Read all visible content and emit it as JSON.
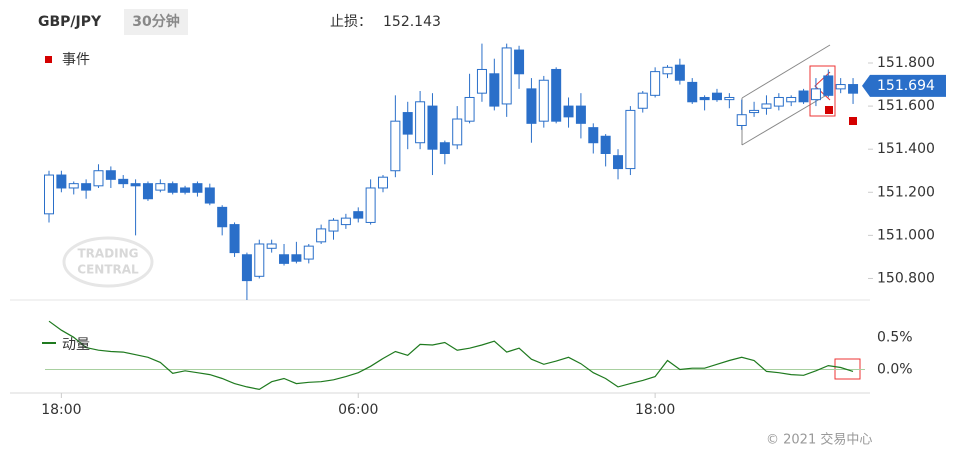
{
  "header": {
    "symbol": "GBP/JPY",
    "timeframe": "30分钟",
    "stop_loss_label": "止损：",
    "stop_loss": 152.143
  },
  "chart_data": [
    {
      "type": "candlestick",
      "events_label": "事件",
      "events_color": "#d40000",
      "categories": [
        null,
        "18:00",
        null,
        null,
        null,
        null,
        null,
        null,
        null,
        null,
        null,
        null,
        null,
        null,
        null,
        null,
        null,
        null,
        null,
        null,
        null,
        null,
        null,
        null,
        null,
        "06:00",
        null,
        null,
        null,
        null,
        null,
        null,
        null,
        null,
        null,
        null,
        null,
        null,
        null,
        null,
        null,
        null,
        null,
        null,
        null,
        null,
        null,
        null,
        null,
        "18:00",
        null,
        null,
        null,
        null,
        null,
        null,
        null,
        null,
        null,
        null,
        null,
        null,
        null,
        null,
        null,
        null
      ],
      "open": [
        151.1,
        151.28,
        151.22,
        151.24,
        151.23,
        151.3,
        151.26,
        151.24,
        151.24,
        151.21,
        151.24,
        151.22,
        151.24,
        151.22,
        151.13,
        151.05,
        150.91,
        150.81,
        150.94,
        150.91,
        150.91,
        150.89,
        150.97,
        151.02,
        151.05,
        151.11,
        151.06,
        151.22,
        151.3,
        151.57,
        151.43,
        151.6,
        151.43,
        151.42,
        151.53,
        151.66,
        151.75,
        151.61,
        151.86,
        151.68,
        151.53,
        151.77,
        151.6,
        151.6,
        151.5,
        151.46,
        151.37,
        151.31,
        151.59,
        151.65,
        151.75,
        151.79,
        151.71,
        151.64,
        151.66,
        151.63,
        151.51,
        151.57,
        151.59,
        151.6,
        151.62,
        151.67,
        151.63,
        151.74,
        151.68,
        151.7
      ],
      "high": [
        151.3,
        151.3,
        151.25,
        151.26,
        151.33,
        151.32,
        151.28,
        151.26,
        151.25,
        151.26,
        151.25,
        151.23,
        151.25,
        151.24,
        151.14,
        151.06,
        150.92,
        150.98,
        150.98,
        150.96,
        150.97,
        150.96,
        151.05,
        151.08,
        151.1,
        151.13,
        151.26,
        151.28,
        151.65,
        151.62,
        151.67,
        151.66,
        151.44,
        151.6,
        151.75,
        151.89,
        151.82,
        151.89,
        151.88,
        151.73,
        151.74,
        151.78,
        151.64,
        151.66,
        151.52,
        151.47,
        151.4,
        151.6,
        151.67,
        151.78,
        151.79,
        151.82,
        151.73,
        151.65,
        151.68,
        151.66,
        151.63,
        151.62,
        151.65,
        151.66,
        151.65,
        151.68,
        151.73,
        151.77,
        151.73,
        151.73
      ],
      "low": [
        151.06,
        151.2,
        151.19,
        151.17,
        151.22,
        151.22,
        151.22,
        151.0,
        151.16,
        151.2,
        151.19,
        151.19,
        151.18,
        151.14,
        151.0,
        150.9,
        150.7,
        150.8,
        150.92,
        150.86,
        150.87,
        150.87,
        150.96,
        150.98,
        151.03,
        151.06,
        151.05,
        151.2,
        151.27,
        151.4,
        151.4,
        151.28,
        151.33,
        151.4,
        151.52,
        151.62,
        151.58,
        151.55,
        151.68,
        151.43,
        151.5,
        151.52,
        151.5,
        151.45,
        151.38,
        151.32,
        151.26,
        151.28,
        151.57,
        151.64,
        151.73,
        151.7,
        151.61,
        151.58,
        151.62,
        151.59,
        151.49,
        151.55,
        151.56,
        151.58,
        151.6,
        151.61,
        151.6,
        151.64,
        151.66,
        151.61
      ],
      "close": [
        151.28,
        151.22,
        151.24,
        151.21,
        151.3,
        151.26,
        151.24,
        151.23,
        151.17,
        151.24,
        151.2,
        151.2,
        151.2,
        151.15,
        151.04,
        150.92,
        150.79,
        150.96,
        150.96,
        150.87,
        150.88,
        150.95,
        151.03,
        151.07,
        151.08,
        151.08,
        151.22,
        151.27,
        151.53,
        151.47,
        151.62,
        151.4,
        151.38,
        151.54,
        151.64,
        151.77,
        151.6,
        151.87,
        151.75,
        151.52,
        151.72,
        151.53,
        151.55,
        151.52,
        151.43,
        151.38,
        151.31,
        151.58,
        151.66,
        151.76,
        151.78,
        151.72,
        151.62,
        151.63,
        151.63,
        151.64,
        151.56,
        151.58,
        151.61,
        151.64,
        151.64,
        151.62,
        151.68,
        151.65,
        151.7,
        151.66
      ],
      "up_color": "#ffffff",
      "down_color": "#2a6fc9",
      "outline_color": "#2a6fc9",
      "ylim": [
        150.7,
        151.93
      ],
      "yticks": [
        {
          "value": 151.8,
          "label": "151.800"
        },
        {
          "value": 151.6,
          "label": "151.600"
        },
        {
          "value": 151.4,
          "label": "151.400"
        },
        {
          "value": 151.2,
          "label": "151.200"
        },
        {
          "value": 151.0,
          "label": "151.000"
        },
        {
          "value": 150.8,
          "label": "150.800"
        }
      ],
      "last_price": 151.694,
      "last_price_color": "#2a6fc9",
      "watermark": [
        "TRADING",
        "CENTRAL"
      ]
    },
    {
      "type": "line",
      "series": [
        {
          "name": "动量",
          "color": "#1f7a1f",
          "values": [
            0.75,
            0.61,
            0.5,
            0.34,
            0.3,
            0.28,
            0.27,
            0.23,
            0.19,
            0.11,
            -0.06,
            -0.02,
            -0.05,
            -0.08,
            -0.14,
            -0.22,
            -0.27,
            -0.31,
            -0.19,
            -0.14,
            -0.22,
            -0.2,
            -0.19,
            -0.16,
            -0.11,
            -0.05,
            0.05,
            0.17,
            0.28,
            0.22,
            0.39,
            0.38,
            0.42,
            0.3,
            0.33,
            0.38,
            0.44,
            0.27,
            0.33,
            0.16,
            0.08,
            0.13,
            0.19,
            0.09,
            -0.05,
            -0.14,
            -0.27,
            -0.22,
            -0.17,
            -0.11,
            0.14,
            0.0,
            0.02,
            0.02,
            0.08,
            0.14,
            0.19,
            0.14,
            -0.03,
            -0.05,
            -0.08,
            -0.09,
            -0.02,
            0.06,
            0.03,
            -0.03
          ]
        }
      ],
      "ylim": [
        -0.35,
        0.8
      ],
      "yticks": [
        {
          "value": 0.5,
          "label": "0.5%"
        },
        {
          "value": 0,
          "label": "0.0%"
        }
      ],
      "zero_line_color": "#a8d0a0"
    }
  ],
  "footer": "© 2021 交易中心"
}
